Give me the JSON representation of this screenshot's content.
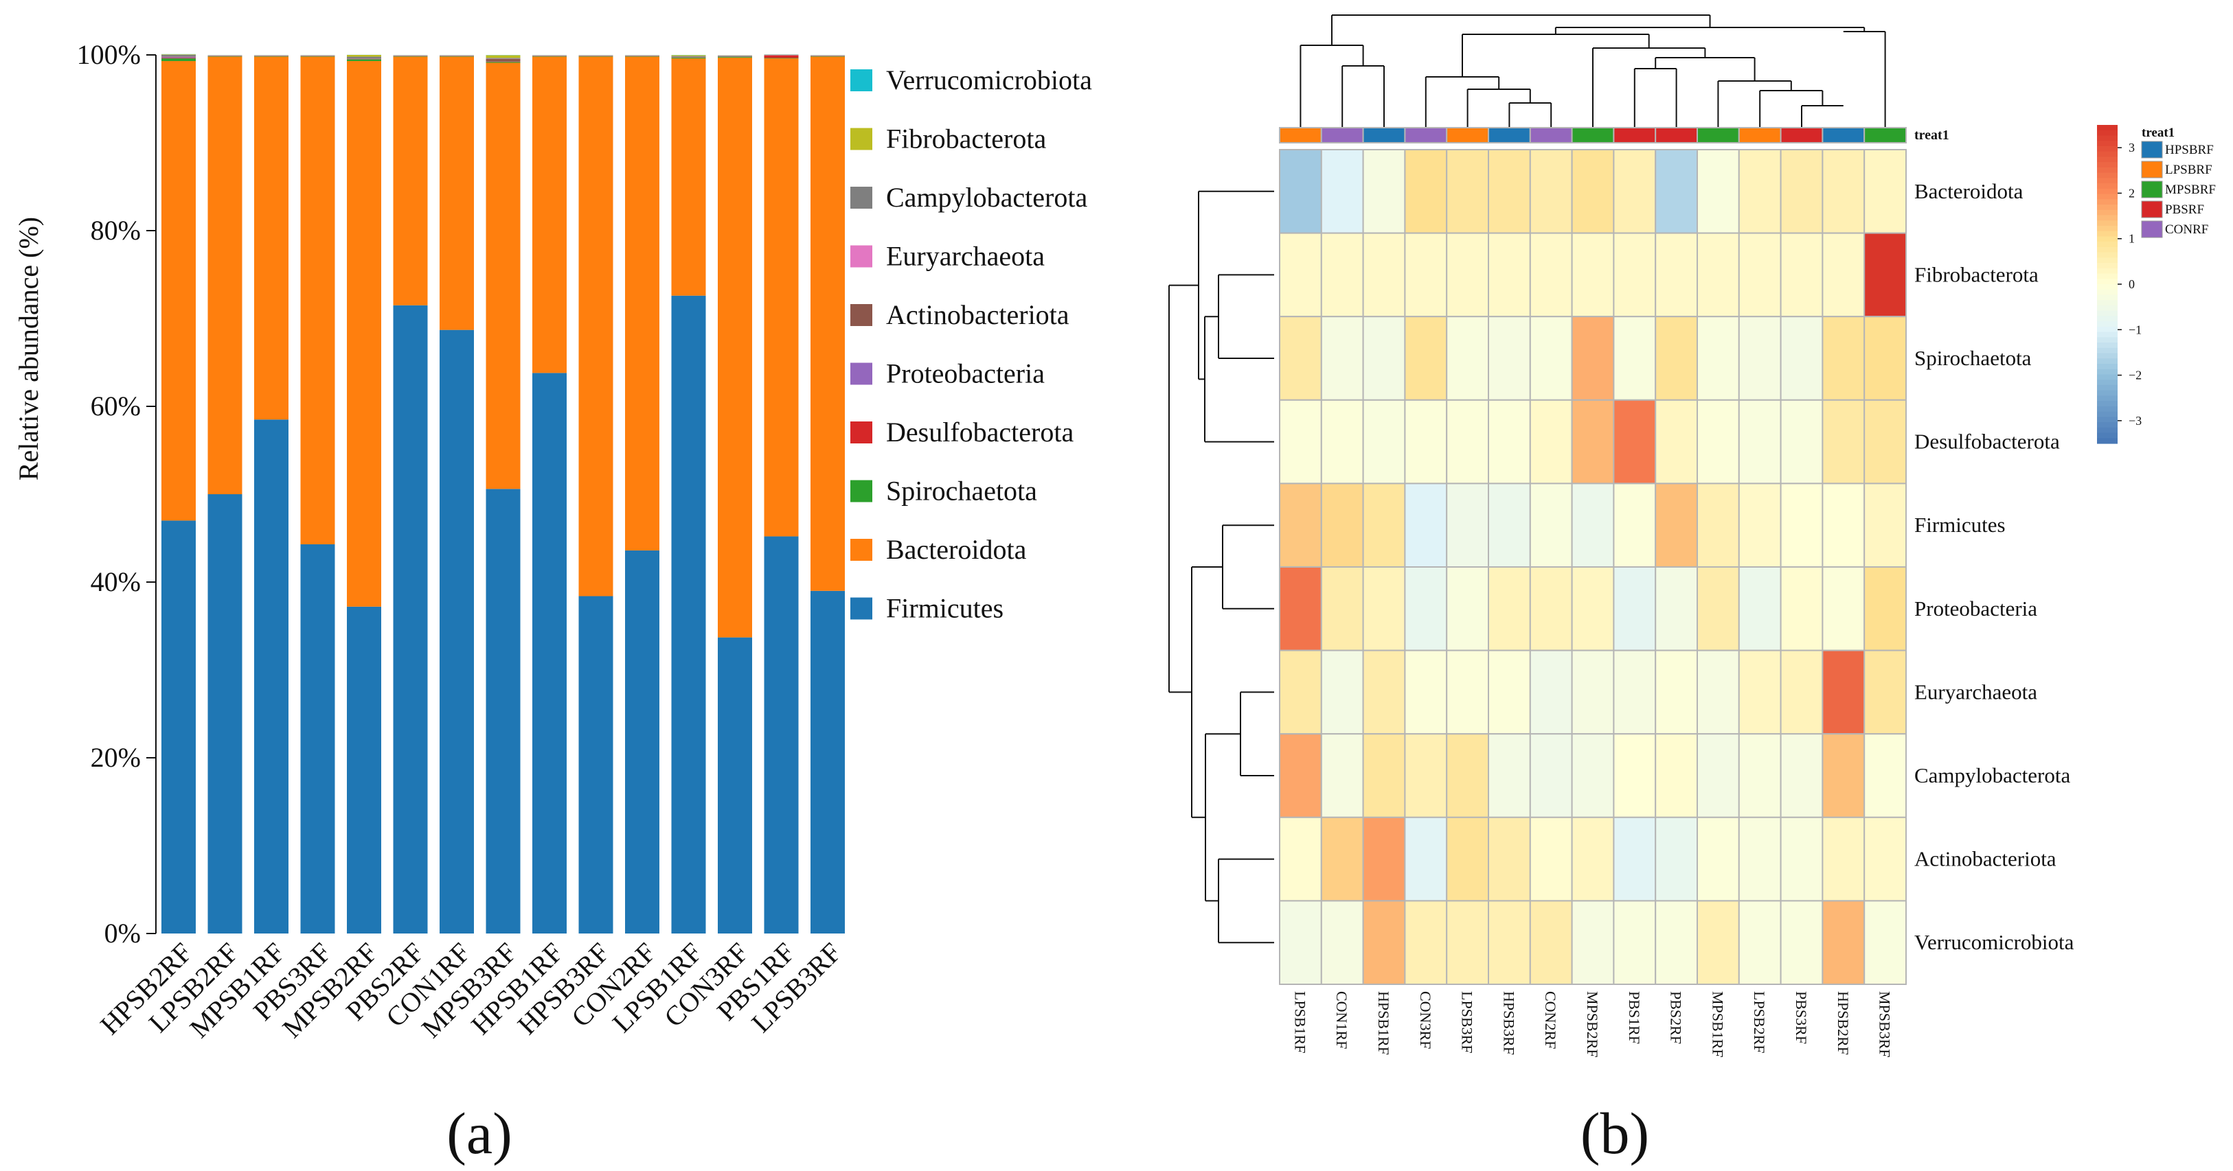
{
  "panel_labels": {
    "a": "(a)",
    "b": "(b)"
  },
  "colors": {
    "Firmicutes": "#1f77b4",
    "Bacteroidota": "#ff7f0e",
    "Spirochaetota": "#2ca02c",
    "Desulfobacterota": "#d62728",
    "Proteobacteria": "#9467bd",
    "Actinobacteriota": "#8c564b",
    "Euryarchaeota": "#e377c2",
    "Campylobacterota": "#7f7f7f",
    "Fibrobacterota": "#bcbd22",
    "Verrucomicrobiota": "#17becf",
    "group_HPSBRF": "#1f77b4",
    "group_LPSBRF": "#ff7f0e",
    "group_MPSBRF": "#2ca02c",
    "group_PBSRF": "#d62728",
    "group_CONRF": "#9467bd"
  },
  "chart_data": [
    {
      "type": "bar",
      "stacked": true,
      "title": "",
      "xlabel": "",
      "ylabel": "Relative abundance (%)",
      "ylim": [
        0,
        100
      ],
      "yticks": [
        "0%",
        "20%",
        "40%",
        "60%",
        "80%",
        "100%"
      ],
      "categories": [
        "HPSB2RF",
        "LPSB2RF",
        "MPSB1RF",
        "PBS3RF",
        "MPSB2RF",
        "PBS2RF",
        "CON1RF",
        "MPSB3RF",
        "HPSB1RF",
        "HPSB3RF",
        "CON2RF",
        "LPSB1RF",
        "CON3RF",
        "PBS1RF",
        "LPSB3RF"
      ],
      "legend_position": "right",
      "legend": [
        "Verrucomicrobiota",
        "Fibrobacterota",
        "Campylobacterota",
        "Euryarchaeota",
        "Actinobacteriota",
        "Proteobacteria",
        "Desulfobacterota",
        "Spirochaetota",
        "Bacteroidota",
        "Firmicutes"
      ],
      "series": [
        {
          "name": "Firmicutes",
          "values": [
            47,
            50,
            58.5,
            44.3,
            37.2,
            71.5,
            68.7,
            50.6,
            63.8,
            38.4,
            43.6,
            72.6,
            33.7,
            45.2,
            39
          ]
        },
        {
          "name": "Bacteroidota",
          "values": [
            52.3,
            49.8,
            41.3,
            55.5,
            62.1,
            28.3,
            31.1,
            48.5,
            36,
            61.4,
            56.2,
            27,
            66,
            54.4,
            60.8
          ]
        },
        {
          "name": "Spirochaetota",
          "values": [
            0.3,
            0.05,
            0.05,
            0.05,
            0.2,
            0.05,
            0.05,
            0.1,
            0.05,
            0.05,
            0.05,
            0.1,
            0.1,
            0.05,
            0.05
          ]
        },
        {
          "name": "Desulfobacterota",
          "values": [
            0.05,
            0.02,
            0.02,
            0.02,
            0.02,
            0.02,
            0.02,
            0.02,
            0.02,
            0.02,
            0.02,
            0.02,
            0.02,
            0.3,
            0.02
          ]
        },
        {
          "name": "Proteobacteria",
          "values": [
            0.1,
            0.02,
            0.02,
            0.02,
            0.02,
            0.02,
            0.02,
            0.02,
            0.02,
            0.02,
            0.02,
            0.02,
            0.02,
            0.02,
            0.02
          ]
        },
        {
          "name": "Actinobacteriota",
          "values": [
            0.05,
            0.02,
            0.02,
            0.02,
            0.05,
            0.02,
            0.02,
            0.3,
            0.02,
            0.02,
            0.02,
            0.02,
            0.02,
            0.02,
            0.02
          ]
        },
        {
          "name": "Euryarchaeota",
          "values": [
            0.02,
            0.01,
            0.01,
            0.01,
            0.01,
            0.01,
            0.01,
            0.02,
            0.01,
            0.01,
            0.01,
            0.01,
            0.02,
            0.01,
            0.01
          ]
        },
        {
          "name": "Campylobacterota",
          "values": [
            0.2,
            0.03,
            0.03,
            0.03,
            0.2,
            0.03,
            0.03,
            0.1,
            0.03,
            0.03,
            0.03,
            0.1,
            0.05,
            0.03,
            0.03
          ]
        },
        {
          "name": "Fibrobacterota",
          "values": [
            0.05,
            0.01,
            0.01,
            0.01,
            0.2,
            0.01,
            0.01,
            0.3,
            0.01,
            0.01,
            0.01,
            0.1,
            0.02,
            0.01,
            0.01
          ]
        },
        {
          "name": "Verrucomicrobiota",
          "values": [
            0.02,
            0.01,
            0.01,
            0.01,
            0.01,
            0.01,
            0.01,
            0.02,
            0.01,
            0.01,
            0.01,
            0.02,
            0.01,
            0.01,
            0.01
          ]
        }
      ]
    },
    {
      "type": "heatmap",
      "title": "",
      "columns": [
        "LPSB1RF",
        "CON1RF",
        "HPSB1RF",
        "CON3RF",
        "LPSB3RF",
        "HPSB3RF",
        "CON2RF",
        "MPSB2RF",
        "PBS1RF",
        "PBS2RF",
        "MPSB1RF",
        "LPSB2RF",
        "PBS3RF",
        "HPSB2RF",
        "MPSB3RF"
      ],
      "rows": [
        "Bacteroidota",
        "Fibrobacterota",
        "Spirochaetota",
        "Desulfobacterota",
        "Firmicutes",
        "Proteobacteria",
        "Euryarchaeota",
        "Campylobacterota",
        "Actinobacteriota",
        "Verrucomicrobiota"
      ],
      "column_groups": [
        "LPSBRF",
        "CONRF",
        "HPSBRF",
        "CONRF",
        "LPSBRF",
        "HPSBRF",
        "CONRF",
        "MPSBRF",
        "PBSRF",
        "PBSRF",
        "MPSBRF",
        "LPSBRF",
        "PBSRF",
        "HPSBRF",
        "MPSBRF"
      ],
      "annotation_label": "treat1",
      "annotation_legend_title": "treat1",
      "annotation_legend": [
        "HPSBRF",
        "LPSBRF",
        "MPSBRF",
        "PBSRF",
        "CONRF"
      ],
      "color_scale": {
        "min": -3.5,
        "max": 3.5,
        "ticks": [
          3,
          2,
          1,
          0,
          -1,
          -2,
          -3
        ],
        "tick_labels": [
          "3",
          "2",
          "1",
          "0",
          "−1",
          "−2",
          "−3"
        ]
      },
      "values": [
        [
          -1.8,
          -1.0,
          -0.3,
          1.0,
          0.8,
          0.8,
          0.6,
          0.9,
          0.5,
          -1.6,
          -0.2,
          0.4,
          0.6,
          0.5,
          0.3
        ],
        [
          0.2,
          0.2,
          0.2,
          0.2,
          0.2,
          0.2,
          0.2,
          0.2,
          0.2,
          0.2,
          0.2,
          0.2,
          0.2,
          0.2,
          3.4
        ],
        [
          0.7,
          -0.3,
          -0.4,
          0.9,
          -0.2,
          -0.3,
          -0.2,
          1.6,
          -0.2,
          0.9,
          -0.2,
          -0.3,
          -0.4,
          0.9,
          1.0
        ],
        [
          -0.1,
          -0.1,
          -0.2,
          -0.1,
          -0.1,
          -0.1,
          0.2,
          1.5,
          2.3,
          0.3,
          -0.1,
          -0.2,
          -0.2,
          0.7,
          0.8
        ],
        [
          1.3,
          1.1,
          0.8,
          -1.0,
          -0.5,
          -0.6,
          -0.2,
          -0.6,
          -0.1,
          1.4,
          0.5,
          0.2,
          0.0,
          0.0,
          0.3
        ],
        [
          2.4,
          0.6,
          0.4,
          -0.7,
          -0.2,
          0.4,
          0.4,
          0.3,
          -0.8,
          -0.4,
          0.6,
          -0.6,
          0.1,
          -0.1,
          1.0
        ],
        [
          0.7,
          -0.4,
          0.6,
          -0.1,
          -0.1,
          -0.1,
          -0.5,
          -0.3,
          -0.3,
          -0.1,
          -0.3,
          0.3,
          0.4,
          2.6,
          0.8
        ],
        [
          1.7,
          -0.3,
          0.8,
          0.5,
          0.8,
          -0.4,
          -0.5,
          -0.4,
          0.0,
          0.1,
          -0.4,
          -0.2,
          -0.3,
          1.4,
          -0.1
        ],
        [
          0.1,
          1.2,
          1.8,
          -0.9,
          0.9,
          0.6,
          0.1,
          0.3,
          -0.9,
          -0.7,
          -0.1,
          -0.2,
          -0.2,
          0.3,
          0.2
        ],
        [
          -0.4,
          -0.3,
          1.5,
          0.5,
          0.5,
          0.5,
          0.6,
          -0.3,
          -0.2,
          -0.2,
          0.5,
          -0.2,
          -0.2,
          1.5,
          -0.2
        ]
      ]
    }
  ]
}
